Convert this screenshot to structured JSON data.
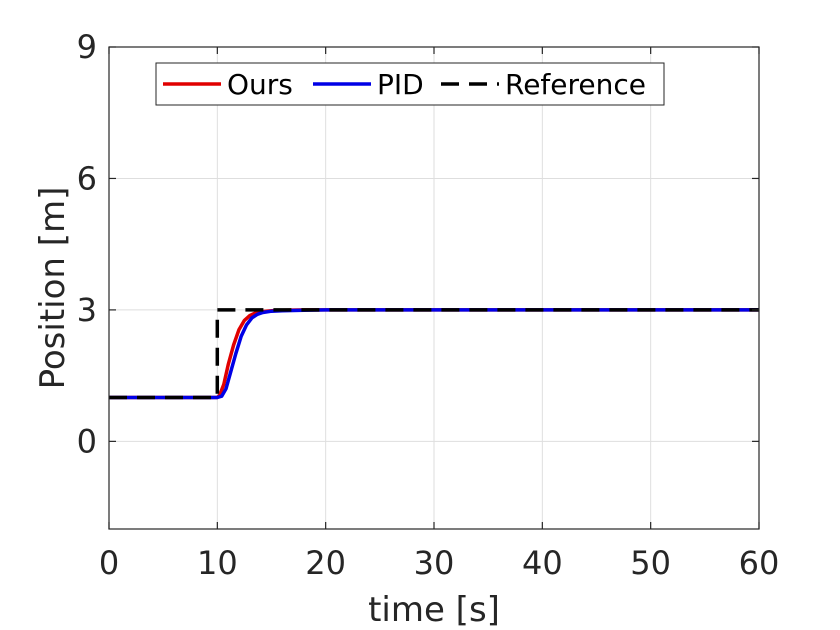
{
  "chart_data": {
    "type": "line",
    "title": "",
    "xlabel": "time [s]",
    "ylabel": "Position [m]",
    "xlim": [
      0,
      60
    ],
    "ylim": [
      -2,
      9
    ],
    "xticks": [
      0,
      10,
      20,
      30,
      40,
      50,
      60
    ],
    "yticks": [
      0,
      3,
      6,
      9
    ],
    "xtick_labels": [
      "0",
      "10",
      "20",
      "30",
      "40",
      "50",
      "60"
    ],
    "ytick_labels": [
      "0",
      "3",
      "6",
      "9"
    ],
    "grid": true,
    "legend_position": "top",
    "series": [
      {
        "name": "Ours",
        "color": "#e00000",
        "style": "solid",
        "x": [
          0,
          10,
          10.2,
          10.6,
          11,
          11.5,
          12,
          12.5,
          13,
          13.5,
          14,
          15,
          16,
          18,
          20,
          25,
          30,
          40,
          50,
          60
        ],
        "y": [
          1,
          1,
          1.05,
          1.3,
          1.75,
          2.2,
          2.55,
          2.76,
          2.87,
          2.93,
          2.96,
          2.98,
          2.99,
          3.0,
          3.0,
          3.0,
          3.0,
          3.0,
          3.0,
          3.0
        ]
      },
      {
        "name": "PID",
        "color": "#0000e6",
        "style": "solid",
        "x": [
          0,
          10,
          10.4,
          10.8,
          11.2,
          11.7,
          12.2,
          12.7,
          13.2,
          13.7,
          14.2,
          15,
          16,
          18,
          20,
          25,
          30,
          40,
          50,
          60
        ],
        "y": [
          1,
          1,
          1.03,
          1.2,
          1.55,
          2.0,
          2.4,
          2.66,
          2.82,
          2.9,
          2.94,
          2.97,
          2.98,
          2.99,
          3.0,
          3.0,
          3.0,
          3.0,
          3.0,
          3.0
        ]
      },
      {
        "name": "Reference",
        "color": "#000000",
        "style": "dashed",
        "x": [
          0,
          10,
          10,
          60
        ],
        "y": [
          1,
          1,
          3,
          3
        ]
      }
    ]
  }
}
